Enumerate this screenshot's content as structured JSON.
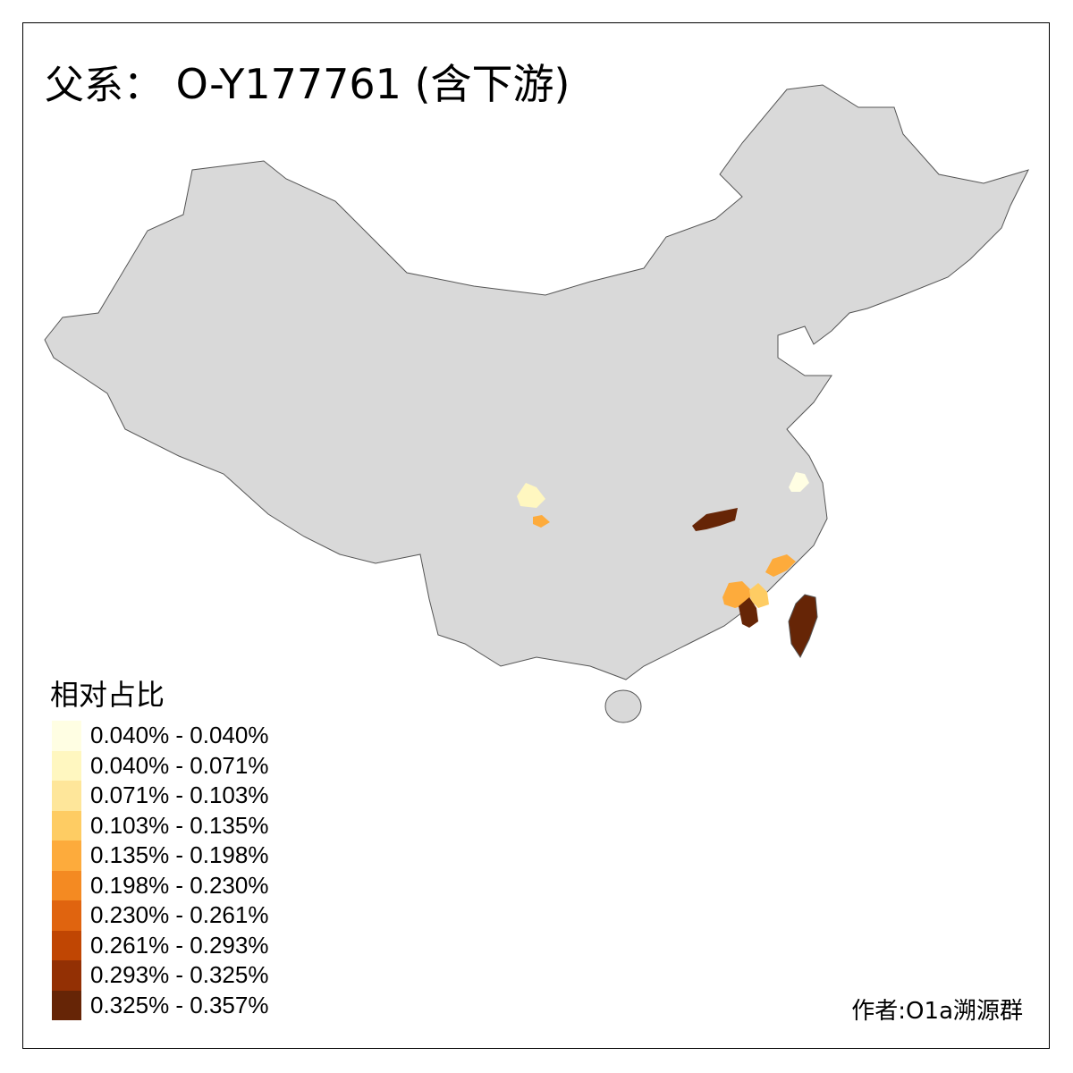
{
  "title": {
    "prefix": "父系：",
    "haplogroup": "O-Y177761 (含下游)"
  },
  "legend": {
    "title": "相对占比",
    "items": [
      {
        "label": "0.040% - 0.040%",
        "color": "#fffee3"
      },
      {
        "label": "0.040% - 0.071%",
        "color": "#fff7c0"
      },
      {
        "label": "0.071% - 0.103%",
        "color": "#fee69a"
      },
      {
        "label": "0.103% - 0.135%",
        "color": "#fecc63"
      },
      {
        "label": "0.135% - 0.198%",
        "color": "#fdab3c"
      },
      {
        "label": "0.198% - 0.230%",
        "color": "#f48a22"
      },
      {
        "label": "0.230% - 0.261%",
        "color": "#e0640f"
      },
      {
        "label": "0.261% - 0.293%",
        "color": "#c04603"
      },
      {
        "label": "0.293% - 0.325%",
        "color": "#933004"
      },
      {
        "label": "0.325% - 0.357%",
        "color": "#662506"
      }
    ]
  },
  "map": {
    "base_color": "#d9d9d9",
    "border_color": "#555555"
  },
  "credit": "作者:O1a溯源群"
}
